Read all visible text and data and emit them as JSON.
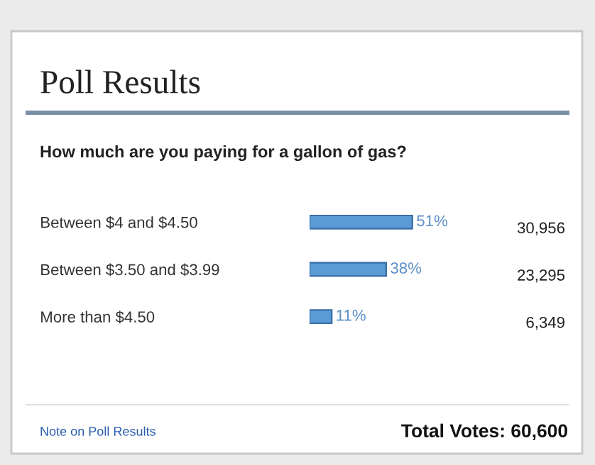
{
  "chart_data": {
    "type": "bar",
    "orientation": "horizontal",
    "title": "Poll Results",
    "subtitle": "How much are you paying for a gallon of gas?",
    "categories": [
      "Between $4 and $4.50",
      "Between $3.50 and $3.99",
      "More than $4.50"
    ],
    "values": [
      51,
      38,
      11
    ],
    "color": "#5b9bd5",
    "tick_labels": "y",
    "value_labels": [
      "51%",
      "38%",
      "11%"
    ],
    "annotations": [
      "30,956",
      "23,295",
      "6,349",
      "Note on Poll Results",
      "Total Votes: 60,600"
    ]
  }
}
